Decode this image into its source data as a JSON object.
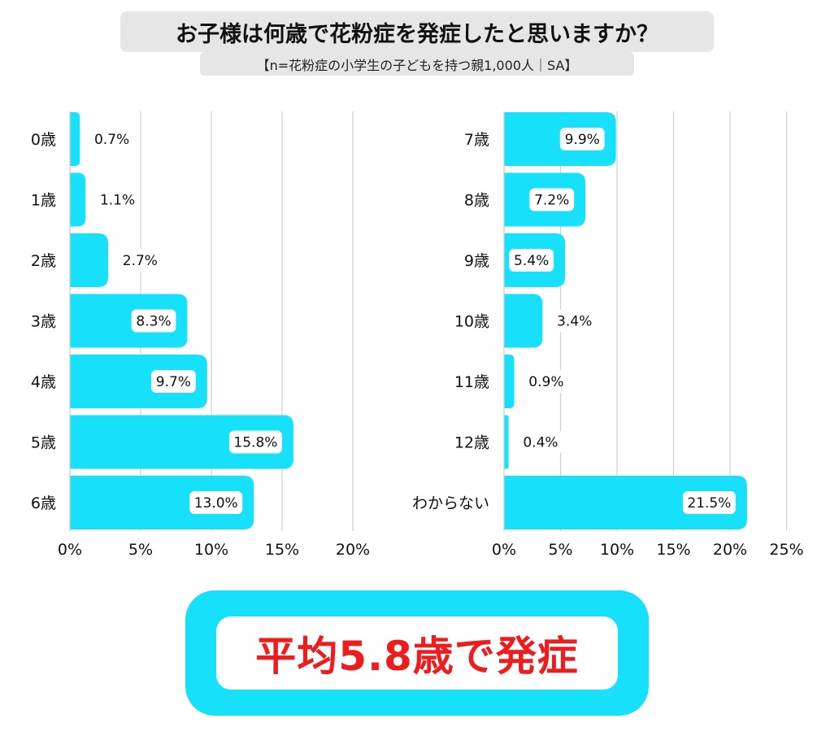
{
  "header": {
    "title": "お子様は何歳で花粉症を発症したと思いますか？",
    "subtitle": "【n=花粉症の小学生の子どもを持つ親1,000人｜SA】"
  },
  "chart_data": [
    {
      "type": "bar",
      "orientation": "horizontal",
      "categories": [
        "0歳",
        "1歳",
        "2歳",
        "3歳",
        "4歳",
        "5歳",
        "6歳"
      ],
      "values": [
        0.7,
        1.1,
        2.7,
        8.3,
        9.7,
        15.8,
        13.0
      ],
      "value_labels": [
        "0.7%",
        "1.1%",
        "2.7%",
        "8.3%",
        "9.7%",
        "15.8%",
        "13.0%"
      ],
      "xlim": [
        0,
        20
      ],
      "ticks": [
        "0%",
        "5%",
        "10%",
        "15%",
        "20%"
      ],
      "bar_color": "#16e0fa",
      "grid": "vertical"
    },
    {
      "type": "bar",
      "orientation": "horizontal",
      "categories": [
        "7歳",
        "8歳",
        "9歳",
        "10歳",
        "11歳",
        "12歳",
        "わからない"
      ],
      "values": [
        9.9,
        7.2,
        5.4,
        3.4,
        0.9,
        0.4,
        21.5
      ],
      "value_labels": [
        "9.9%",
        "7.2%",
        "5.4%",
        "3.4%",
        "0.9%",
        "0.4%",
        "21.5%"
      ],
      "xlim": [
        0,
        25
      ],
      "ticks": [
        "0%",
        "5%",
        "10%",
        "15%",
        "20%",
        "25%"
      ],
      "bar_color": "#16e0fa",
      "grid": "vertical"
    }
  ],
  "callout": {
    "text": "平均5.8歳で発症",
    "text_color": "#ee1c1c",
    "border_color": "#16e0fa"
  }
}
